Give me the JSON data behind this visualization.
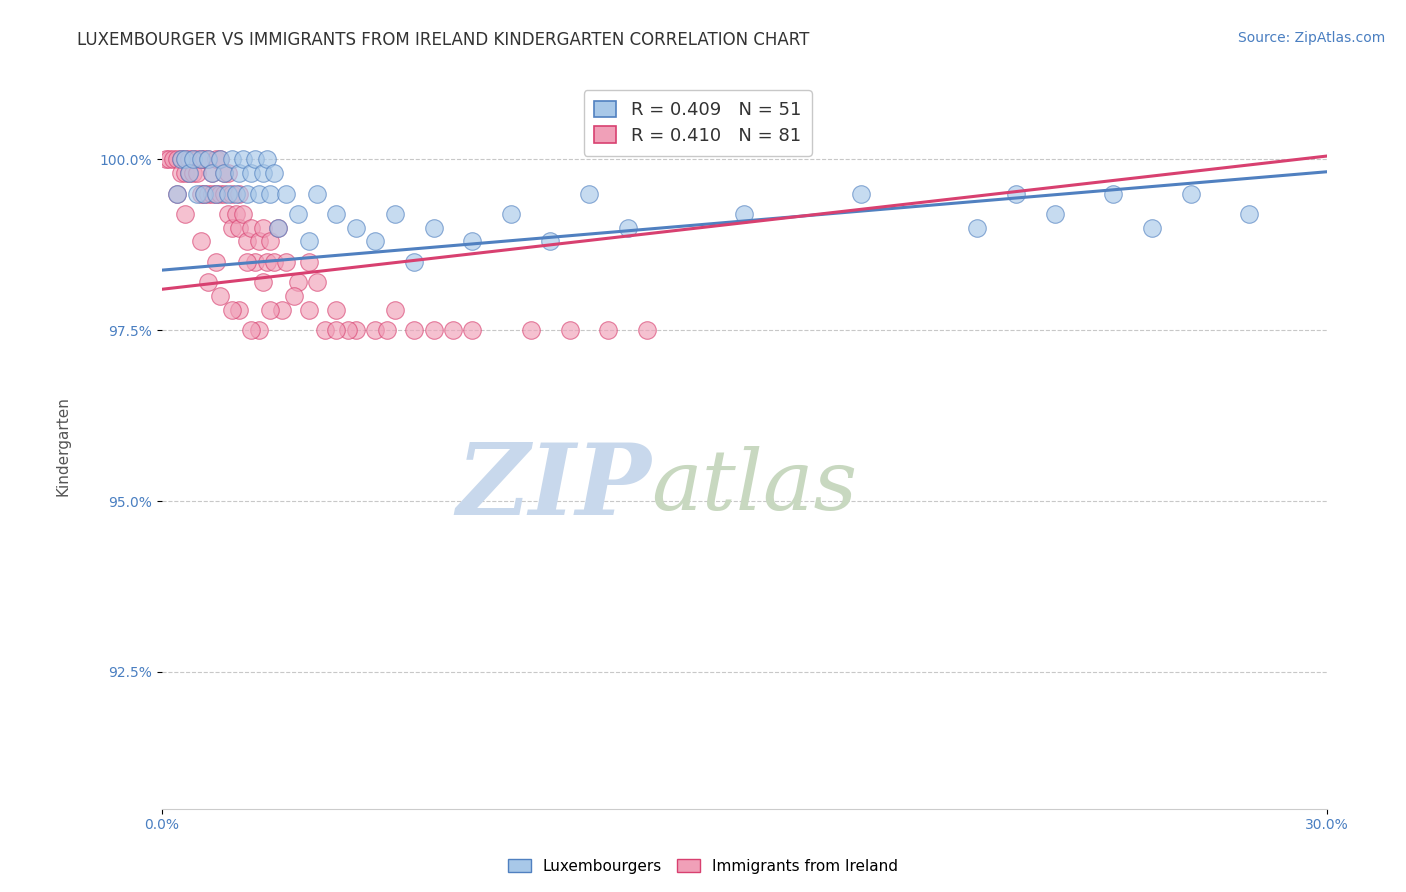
{
  "title": "LUXEMBOURGER VS IMMIGRANTS FROM IRELAND KINDERGARTEN CORRELATION CHART",
  "source_text": "Source: ZipAtlas.com",
  "ylabel": "Kindergarten",
  "xlim": [
    0.0,
    30.0
  ],
  "ylim": [
    90.5,
    101.2
  ],
  "yticks": [
    92.5,
    95.0,
    97.5,
    100.0
  ],
  "ytick_labels": [
    "92.5%",
    "95.0%",
    "97.5%",
    "100.0%"
  ],
  "xticks": [
    0.0,
    30.0
  ],
  "xtick_labels": [
    "0.0%",
    "30.0%"
  ],
  "grid_color": "#c8c8c8",
  "background_color": "#ffffff",
  "blue_color": "#a8c8e8",
  "pink_color": "#f0a0b8",
  "blue_line_color": "#5080c0",
  "pink_line_color": "#d84070",
  "legend_R_blue": "R = 0.409",
  "legend_N_blue": "N = 51",
  "legend_R_pink": "R = 0.410",
  "legend_N_pink": "N = 81",
  "blue_line_x0": 0.0,
  "blue_line_y0": 98.38,
  "blue_line_x1": 30.0,
  "blue_line_y1": 99.82,
  "pink_line_x0": 0.0,
  "pink_line_y0": 98.1,
  "pink_line_x1": 30.0,
  "pink_line_y1": 100.05,
  "blue_scatter_x": [
    0.4,
    0.5,
    0.6,
    0.7,
    0.8,
    0.9,
    1.0,
    1.1,
    1.2,
    1.3,
    1.4,
    1.5,
    1.6,
    1.7,
    1.8,
    1.9,
    2.0,
    2.1,
    2.2,
    2.3,
    2.4,
    2.5,
    2.6,
    2.7,
    2.8,
    2.9,
    3.0,
    3.2,
    3.5,
    3.8,
    4.0,
    4.5,
    5.0,
    5.5,
    6.0,
    6.5,
    7.0,
    8.0,
    9.0,
    10.0,
    11.0,
    12.0,
    15.0,
    18.0,
    21.0,
    22.0,
    23.0,
    24.5,
    25.5,
    26.5,
    28.0
  ],
  "blue_scatter_y": [
    99.5,
    100.0,
    100.0,
    99.8,
    100.0,
    99.5,
    100.0,
    99.5,
    100.0,
    99.8,
    99.5,
    100.0,
    99.8,
    99.5,
    100.0,
    99.5,
    99.8,
    100.0,
    99.5,
    99.8,
    100.0,
    99.5,
    99.8,
    100.0,
    99.5,
    99.8,
    99.0,
    99.5,
    99.2,
    98.8,
    99.5,
    99.2,
    99.0,
    98.8,
    99.2,
    98.5,
    99.0,
    98.8,
    99.2,
    98.8,
    99.5,
    99.0,
    99.2,
    99.5,
    99.0,
    99.5,
    99.2,
    99.5,
    99.0,
    99.5,
    99.2
  ],
  "pink_scatter_x": [
    0.1,
    0.2,
    0.3,
    0.4,
    0.5,
    0.5,
    0.6,
    0.6,
    0.7,
    0.7,
    0.8,
    0.8,
    0.9,
    0.9,
    1.0,
    1.0,
    1.1,
    1.1,
    1.2,
    1.2,
    1.3,
    1.3,
    1.4,
    1.4,
    1.5,
    1.5,
    1.6,
    1.6,
    1.7,
    1.7,
    1.8,
    1.8,
    1.9,
    2.0,
    2.0,
    2.1,
    2.2,
    2.3,
    2.4,
    2.5,
    2.6,
    2.7,
    2.8,
    2.9,
    3.0,
    3.2,
    3.5,
    3.8,
    4.0,
    4.5,
    5.0,
    5.5,
    6.0,
    7.0,
    8.0,
    9.5,
    10.5,
    11.5,
    12.5,
    2.2,
    2.6,
    3.1,
    3.4,
    1.5,
    2.0,
    2.5,
    4.2,
    5.8,
    7.5,
    1.2,
    1.8,
    2.3,
    3.8,
    4.8,
    6.5,
    0.4,
    0.6,
    1.0,
    1.4,
    2.8,
    4.5
  ],
  "pink_scatter_y": [
    100.0,
    100.0,
    100.0,
    100.0,
    100.0,
    99.8,
    100.0,
    99.8,
    100.0,
    99.8,
    100.0,
    99.8,
    100.0,
    99.8,
    100.0,
    99.5,
    100.0,
    99.5,
    100.0,
    99.5,
    99.8,
    99.5,
    100.0,
    99.5,
    100.0,
    99.5,
    99.8,
    99.5,
    99.8,
    99.2,
    99.5,
    99.0,
    99.2,
    99.5,
    99.0,
    99.2,
    98.8,
    99.0,
    98.5,
    98.8,
    99.0,
    98.5,
    98.8,
    98.5,
    99.0,
    98.5,
    98.2,
    98.5,
    98.2,
    97.8,
    97.5,
    97.5,
    97.8,
    97.5,
    97.5,
    97.5,
    97.5,
    97.5,
    97.5,
    98.5,
    98.2,
    97.8,
    98.0,
    98.0,
    97.8,
    97.5,
    97.5,
    97.5,
    97.5,
    98.2,
    97.8,
    97.5,
    97.8,
    97.5,
    97.5,
    99.5,
    99.2,
    98.8,
    98.5,
    97.8,
    97.5
  ],
  "title_fontsize": 12,
  "axis_label_fontsize": 11,
  "tick_fontsize": 10,
  "legend_fontsize": 13,
  "source_fontsize": 10,
  "watermark_zip": "ZIP",
  "watermark_atlas": "atlas",
  "watermark_color_zip": "#c8d8ec",
  "watermark_color_atlas": "#c8d8c0",
  "watermark_fontsize": 72
}
